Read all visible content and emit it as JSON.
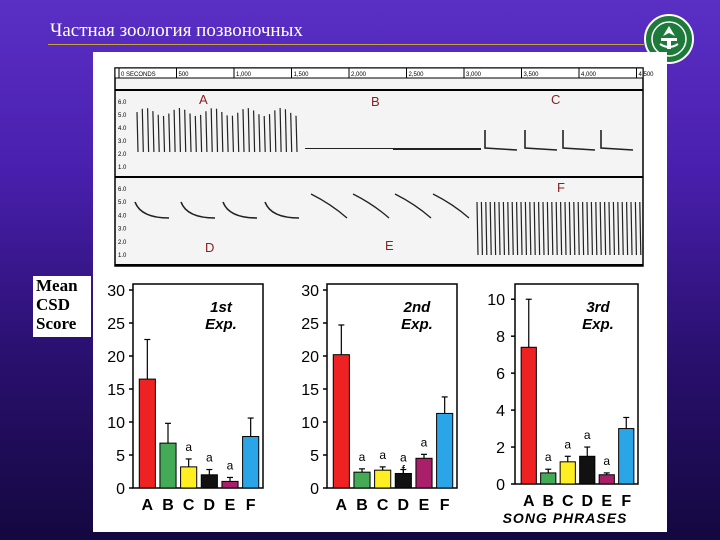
{
  "slide": {
    "title": "Частная зоология позвоночных",
    "logo_icon": "university-emblem-icon",
    "score_label": [
      "Mean",
      "CSD",
      "Score"
    ]
  },
  "spectrogram": {
    "time_ticks": [
      "0 SECONDS",
      "500",
      "1,000",
      "1,500",
      "2,000",
      "2,500",
      "3,000",
      "3,500",
      "4,000",
      "4,500"
    ],
    "freq_ticks": [
      "6.0",
      "5.0",
      "4.0",
      "3.0",
      "2.0",
      "1.0"
    ],
    "phrase_labels_top": [
      "A",
      "B",
      "C"
    ],
    "phrase_labels_bottom": [
      "D",
      "E",
      "F"
    ]
  },
  "chart_data": [
    {
      "type": "bar",
      "title": "1st Exp.",
      "categories": [
        "A",
        "B",
        "C",
        "D",
        "E",
        "F"
      ],
      "values": [
        16.5,
        6.8,
        3.2,
        2.0,
        1.0,
        7.8
      ],
      "errors": [
        6.0,
        3.0,
        1.2,
        0.8,
        0.6,
        2.8
      ],
      "annotations": [
        "",
        "",
        "a",
        "a",
        "a",
        ""
      ],
      "colors": [
        "#ee2222",
        "#44aa55",
        "#ffee22",
        "#111111",
        "#aa1f6a",
        "#2aa6e8"
      ],
      "yticks": [
        0,
        5,
        10,
        15,
        20,
        25,
        30
      ],
      "ylim": [
        0,
        30
      ]
    },
    {
      "type": "bar",
      "title": "2nd Exp.",
      "categories": [
        "A",
        "B",
        "C",
        "D",
        "E",
        "F"
      ],
      "values": [
        20.2,
        2.4,
        2.7,
        2.2,
        4.5,
        11.3
      ],
      "errors": [
        4.5,
        0.5,
        0.5,
        0.6,
        0.6,
        2.5
      ],
      "annotations": [
        "",
        "a",
        "a",
        "a\nf",
        "a",
        ""
      ],
      "colors": [
        "#ee2222",
        "#44aa55",
        "#ffee22",
        "#111111",
        "#aa1f6a",
        "#2aa6e8"
      ],
      "yticks": [
        0,
        5,
        10,
        15,
        20,
        25,
        30
      ],
      "ylim": [
        0,
        30
      ]
    },
    {
      "type": "bar",
      "title": "3rd Exp.",
      "categories": [
        "A",
        "B",
        "C",
        "D",
        "E",
        "F"
      ],
      "values": [
        7.4,
        0.6,
        1.2,
        1.5,
        0.5,
        3.0
      ],
      "errors": [
        2.6,
        0.2,
        0.3,
        0.5,
        0.1,
        0.6
      ],
      "annotations": [
        "",
        "a",
        "a",
        "a",
        "a",
        ""
      ],
      "colors": [
        "#ee2222",
        "#44aa55",
        "#ffee22",
        "#111111",
        "#aa1f6a",
        "#2aa6e8"
      ],
      "yticks": [
        0,
        2,
        4,
        6,
        8,
        10
      ],
      "ylim": [
        0,
        10.5
      ],
      "xlabel": "SONG PHRASES"
    }
  ]
}
